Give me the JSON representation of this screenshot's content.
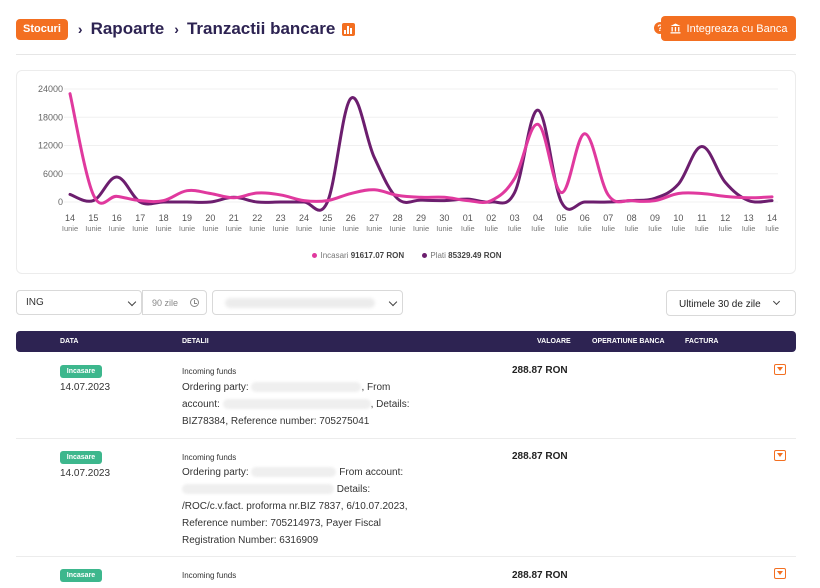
{
  "breadcrumb": {
    "section_badge": "Stocuri",
    "level1": "Rapoarte",
    "level2": "Tranzactii bancare"
  },
  "header": {
    "help_icon": "?",
    "integrate_button": "Integreaza cu Banca"
  },
  "colors": {
    "accent": "#f36f21",
    "navy": "#2d2352",
    "incasari": "#e0399e",
    "plati": "#6c1e6e",
    "badge_green": "#3db78d"
  },
  "chart_data": {
    "type": "line",
    "x": [
      "14 Iunie",
      "15 Iunie",
      "16 Iunie",
      "17 Iunie",
      "18 Iunie",
      "19 Iunie",
      "20 Iunie",
      "21 Iunie",
      "22 Iunie",
      "23 Iunie",
      "24 Iunie",
      "25 Iunie",
      "26 Iunie",
      "27 Iunie",
      "28 Iunie",
      "29 Iunie",
      "30 Iunie",
      "01 Iulie",
      "02 Iulie",
      "03 Iulie",
      "04 Iulie",
      "05 Iulie",
      "06 Iulie",
      "07 Iulie",
      "08 Iulie",
      "09 Iulie",
      "10 Iulie",
      "11 Iulie",
      "12 Iulie",
      "13 Iulie",
      "14 Iulie"
    ],
    "x_ticks": [
      {
        "day": "14",
        "month": "Iunie"
      },
      {
        "day": "15",
        "month": "Iunie"
      },
      {
        "day": "16",
        "month": "Iunie"
      },
      {
        "day": "17",
        "month": "Iunie"
      },
      {
        "day": "18",
        "month": "Iunie"
      },
      {
        "day": "19",
        "month": "Iunie"
      },
      {
        "day": "20",
        "month": "Iunie"
      },
      {
        "day": "21",
        "month": "Iunie"
      },
      {
        "day": "22",
        "month": "Iunie"
      },
      {
        "day": "23",
        "month": "Iunie"
      },
      {
        "day": "24",
        "month": "Iunie"
      },
      {
        "day": "25",
        "month": "Iunie"
      },
      {
        "day": "26",
        "month": "Iunie"
      },
      {
        "day": "27",
        "month": "Iunie"
      },
      {
        "day": "28",
        "month": "Iunie"
      },
      {
        "day": "29",
        "month": "Iunie"
      },
      {
        "day": "30",
        "month": "Iunie"
      },
      {
        "day": "01",
        "month": "Iulie"
      },
      {
        "day": "02",
        "month": "Iulie"
      },
      {
        "day": "03",
        "month": "Iulie"
      },
      {
        "day": "04",
        "month": "Iulie"
      },
      {
        "day": "05",
        "month": "Iulie"
      },
      {
        "day": "06",
        "month": "Iulie"
      },
      {
        "day": "07",
        "month": "Iulie"
      },
      {
        "day": "08",
        "month": "Iulie"
      },
      {
        "day": "09",
        "month": "Iulie"
      },
      {
        "day": "10",
        "month": "Iulie"
      },
      {
        "day": "11",
        "month": "Iulie"
      },
      {
        "day": "12",
        "month": "Iulie"
      },
      {
        "day": "13",
        "month": "Iulie"
      },
      {
        "day": "14",
        "month": "Iulie"
      }
    ],
    "y_ticks": [
      "24000",
      "18000",
      "12000",
      "6000",
      "0"
    ],
    "ylim": [
      0,
      24000
    ],
    "grid": "horizontal",
    "legend_position": "bottom-center",
    "series": [
      {
        "name": "Incasari",
        "color": "#e0399e",
        "total_label": "91617.07 RON",
        "values": [
          23000,
          1500,
          1200,
          300,
          300,
          2400,
          1800,
          900,
          1900,
          1500,
          300,
          300,
          1800,
          2600,
          1400,
          1000,
          1000,
          300,
          300,
          5000,
          16500,
          2000,
          14500,
          1500,
          300,
          300,
          1800,
          1800,
          1200,
          900,
          1100
        ]
      },
      {
        "name": "Plati",
        "color": "#6c1e6e",
        "total_label": "85329.49 RON",
        "values": [
          1600,
          300,
          5300,
          0,
          0,
          0,
          0,
          1000,
          0,
          0,
          0,
          0,
          22000,
          9500,
          700,
          400,
          300,
          600,
          0,
          2000,
          19500,
          0,
          0,
          0,
          300,
          800,
          3800,
          11800,
          4200,
          300,
          300
        ]
      }
    ]
  },
  "filters": {
    "bank_select": "ING",
    "days_value": "90 zile",
    "period_select": "Ultimele 30 de zile"
  },
  "table": {
    "headers": [
      "DATA",
      "DETALII",
      "VALOARE",
      "OPERATIUNE BANCA",
      "FACTURA"
    ],
    "rows": [
      {
        "badge": "Incasare",
        "date": "14.07.2023",
        "title": "Incoming funds",
        "line1_a": "Ordering party:",
        "line1_b": ", From",
        "line2_a": "account:",
        "line2_b": ", Details:",
        "line3": "BIZ78384, Reference number: 705275041",
        "amount": "288.87 RON"
      },
      {
        "badge": "Incasare",
        "date": "14.07.2023",
        "title": "Incoming funds",
        "line1_a": "Ordering party:",
        "line1_b": "From account:",
        "line2_b": "Details:",
        "line3": "/ROC/c.v.fact. proforma nr.BIZ 7837, 6/10.07.2023,",
        "line4": "Reference number: 705214973, Payer Fiscal",
        "line5": "Registration Number: 6316909",
        "amount": "288.87 RON"
      },
      {
        "badge": "Incasare",
        "title": "Incoming funds",
        "amount": "288.87 RON"
      }
    ]
  }
}
